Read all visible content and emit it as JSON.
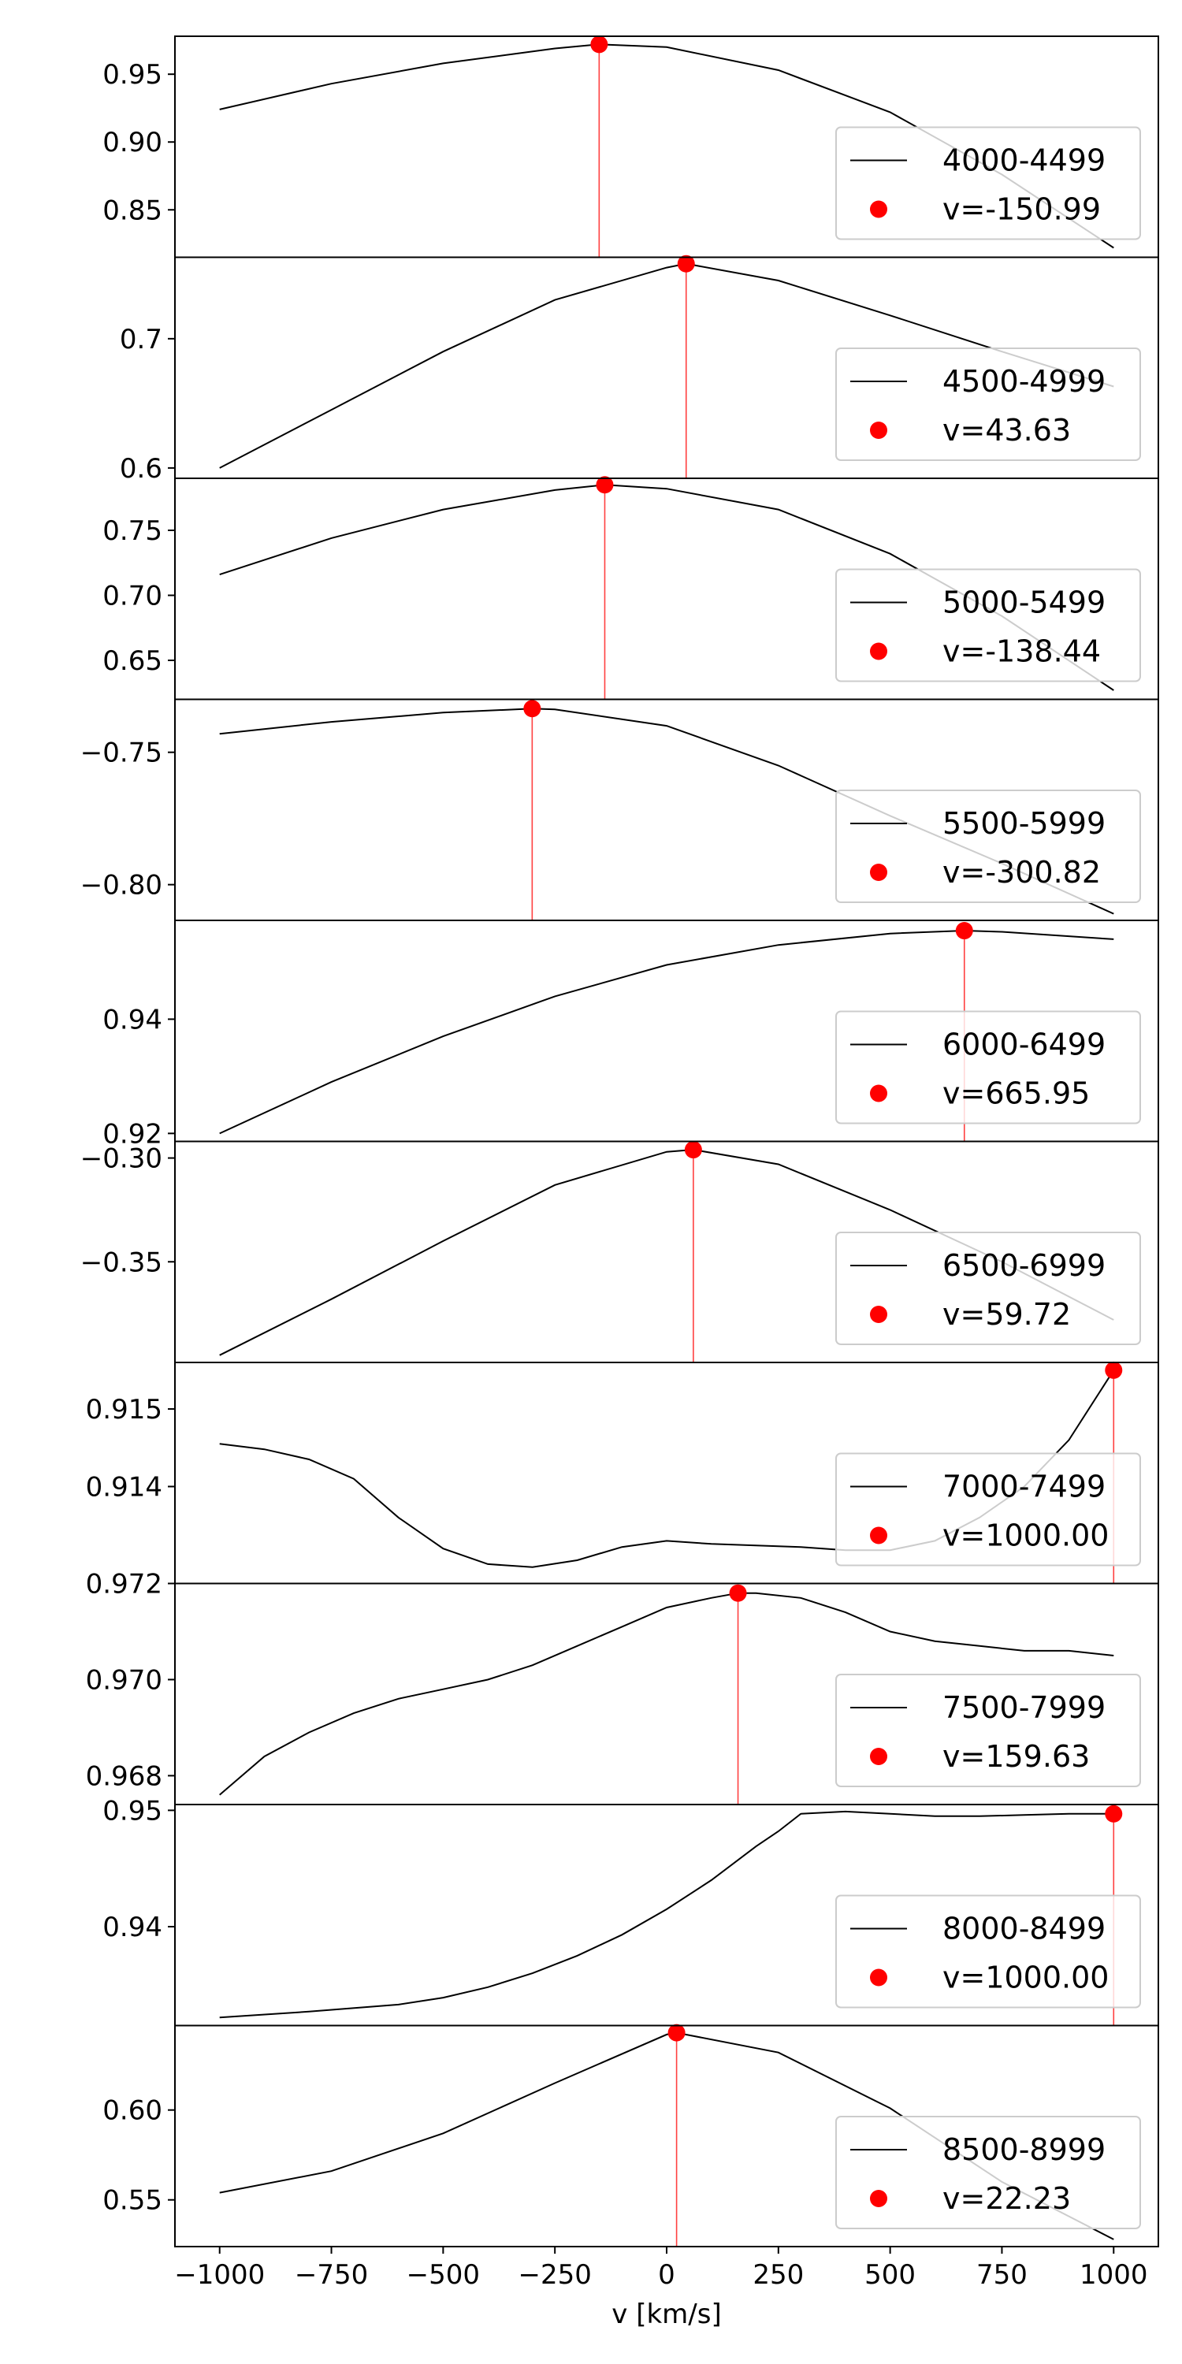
{
  "colors": {
    "curve": "#000000",
    "peak": "#ff0000",
    "frame": "#000000",
    "legend_border": "#cccccc"
  },
  "chart_data": {
    "type": "line",
    "xlabel": "v [km/s]",
    "xlim": [
      -1100,
      1100
    ],
    "xticks": [
      -1000,
      -750,
      -500,
      -250,
      0,
      250,
      500,
      750,
      1000
    ],
    "grid": false,
    "legend_placement": "lower right",
    "panels": [
      {
        "series": "4000-4499",
        "peak_label": "v=-150.99",
        "peak_v": -150.99,
        "peak_y": 0.972,
        "ylim": [
          0.815,
          0.978
        ],
        "yticks": [
          0.85,
          0.9,
          0.95
        ],
        "ytick_labels": [
          "0.85",
          "0.90",
          "0.95"
        ],
        "x": [
          -1000,
          -750,
          -500,
          -250,
          -150.99,
          0,
          250,
          500,
          750,
          1000
        ],
        "y": [
          0.924,
          0.943,
          0.958,
          0.969,
          0.972,
          0.97,
          0.953,
          0.922,
          0.876,
          0.822
        ]
      },
      {
        "series": "4500-4999",
        "peak_label": "v=43.63",
        "peak_v": 43.63,
        "peak_y": 0.758,
        "ylim": [
          0.592,
          0.763
        ],
        "yticks": [
          0.6,
          0.7
        ],
        "ytick_labels": [
          "0.6",
          "0.7"
        ],
        "x": [
          -1000,
          -750,
          -500,
          -250,
          0,
          43.63,
          250,
          500,
          750,
          1000
        ],
        "y": [
          0.6,
          0.645,
          0.69,
          0.73,
          0.755,
          0.758,
          0.745,
          0.718,
          0.69,
          0.663
        ]
      },
      {
        "series": "5000-5499",
        "peak_label": "v=-138.44",
        "peak_v": -138.44,
        "peak_y": 0.785,
        "ylim": [
          0.62,
          0.79
        ],
        "yticks": [
          0.65,
          0.7,
          0.75
        ],
        "ytick_labels": [
          "0.65",
          "0.70",
          "0.75"
        ],
        "x": [
          -1000,
          -750,
          -500,
          -250,
          -138.44,
          0,
          250,
          500,
          750,
          1000
        ],
        "y": [
          0.716,
          0.744,
          0.766,
          0.781,
          0.785,
          0.782,
          0.766,
          0.732,
          0.684,
          0.627
        ]
      },
      {
        "series": "5500-5999",
        "peak_label": "v=-300.82",
        "peak_v": -300.82,
        "peak_y": -0.7335,
        "ylim": [
          -0.8135,
          -0.73
        ],
        "yticks": [
          -0.8,
          -0.75
        ],
        "ytick_labels": [
          "−0.80",
          "−0.75"
        ],
        "x": [
          -1000,
          -750,
          -500,
          -300.82,
          -250,
          0,
          250,
          500,
          750,
          1000
        ],
        "y": [
          -0.743,
          -0.7385,
          -0.735,
          -0.7335,
          -0.7338,
          -0.74,
          -0.755,
          -0.774,
          -0.792,
          -0.811
        ]
      },
      {
        "series": "6000-6499",
        "peak_label": "v=665.95",
        "peak_v": 665.95,
        "peak_y": 0.9555,
        "ylim": [
          0.9186,
          0.9573
        ],
        "yticks": [
          0.92,
          0.94
        ],
        "ytick_labels": [
          "0.92",
          "0.94"
        ],
        "x": [
          -1000,
          -750,
          -500,
          -250,
          0,
          250,
          500,
          665.95,
          750,
          1000
        ],
        "y": [
          0.92,
          0.929,
          0.937,
          0.944,
          0.9495,
          0.953,
          0.955,
          0.9555,
          0.9553,
          0.954
        ]
      },
      {
        "series": "6500-6999",
        "peak_label": "v=59.72",
        "peak_v": 59.72,
        "peak_y": -0.296,
        "ylim": [
          -0.3985,
          -0.292
        ],
        "yticks": [
          -0.35,
          -0.3
        ],
        "ytick_labels": [
          "−0.35",
          "−0.30"
        ],
        "x": [
          -1000,
          -750,
          -500,
          -250,
          0,
          59.72,
          250,
          500,
          750,
          1000
        ],
        "y": [
          -0.395,
          -0.368,
          -0.34,
          -0.313,
          -0.297,
          -0.296,
          -0.303,
          -0.325,
          -0.35,
          -0.378
        ]
      },
      {
        "series": "7000-7499",
        "peak_label": "v=1000.00",
        "peak_v": 1000.0,
        "peak_y": 0.9155,
        "ylim": [
          0.91275,
          0.9156
        ],
        "yticks": [
          0.914,
          0.915
        ],
        "ytick_labels": [
          "0.914",
          "0.915"
        ],
        "x": [
          -1000,
          -900,
          -800,
          -700,
          -600,
          -500,
          -400,
          -300,
          -200,
          -100,
          0,
          100,
          200,
          300,
          400,
          500,
          600,
          700,
          800,
          900,
          1000
        ],
        "y": [
          0.91455,
          0.91448,
          0.91435,
          0.9141,
          0.9136,
          0.9132,
          0.913,
          0.91296,
          0.91305,
          0.91322,
          0.9133,
          0.91326,
          0.91324,
          0.91322,
          0.91318,
          0.91318,
          0.9133,
          0.9136,
          0.914,
          0.9146,
          0.9155
        ]
      },
      {
        "series": "7500-7999",
        "peak_label": "v=159.63",
        "peak_v": 159.63,
        "peak_y": 0.9718,
        "ylim": [
          0.9674,
          0.972
        ],
        "yticks": [
          0.968,
          0.97,
          0.972
        ],
        "ytick_labels": [
          "0.968",
          "0.970",
          "0.972"
        ],
        "x": [
          -1000,
          -900,
          -800,
          -700,
          -600,
          -500,
          -400,
          -300,
          -200,
          -100,
          0,
          100,
          159.63,
          200,
          300,
          400,
          500,
          600,
          700,
          800,
          900,
          1000
        ],
        "y": [
          0.9676,
          0.9684,
          0.9689,
          0.9693,
          0.9696,
          0.9698,
          0.97,
          0.9703,
          0.9707,
          0.9711,
          0.9715,
          0.9717,
          0.9718,
          0.9718,
          0.9717,
          0.9714,
          0.971,
          0.9708,
          0.9707,
          0.9706,
          0.9706,
          0.9705
        ]
      },
      {
        "series": "8000-8499",
        "peak_label": "v=1000.00",
        "peak_v": 1000.0,
        "peak_y": 0.9497,
        "ylim": [
          0.9315,
          0.9505
        ],
        "yticks": [
          0.94,
          0.95
        ],
        "ytick_labels": [
          "0.94",
          "0.95"
        ],
        "x": [
          -1000,
          -800,
          -600,
          -500,
          -400,
          -300,
          -200,
          -100,
          0,
          100,
          200,
          250,
          300,
          400,
          500,
          600,
          700,
          800,
          900,
          1000
        ],
        "y": [
          0.9322,
          0.9327,
          0.9333,
          0.9339,
          0.9348,
          0.936,
          0.9375,
          0.9393,
          0.9415,
          0.944,
          0.9469,
          0.9482,
          0.9497,
          0.9499,
          0.9497,
          0.9495,
          0.9495,
          0.9496,
          0.9497,
          0.9497
        ]
      },
      {
        "series": "8500-8999",
        "peak_label": "v=22.23",
        "peak_v": 22.23,
        "peak_y": 0.643,
        "ylim": [
          0.524,
          0.647
        ],
        "yticks": [
          0.55,
          0.6
        ],
        "ytick_labels": [
          "0.55",
          "0.60"
        ],
        "x": [
          -1000,
          -750,
          -500,
          -250,
          0,
          22.23,
          250,
          500,
          750,
          1000
        ],
        "y": [
          0.554,
          0.566,
          0.587,
          0.615,
          0.642,
          0.643,
          0.632,
          0.601,
          0.56,
          0.528
        ]
      }
    ]
  }
}
